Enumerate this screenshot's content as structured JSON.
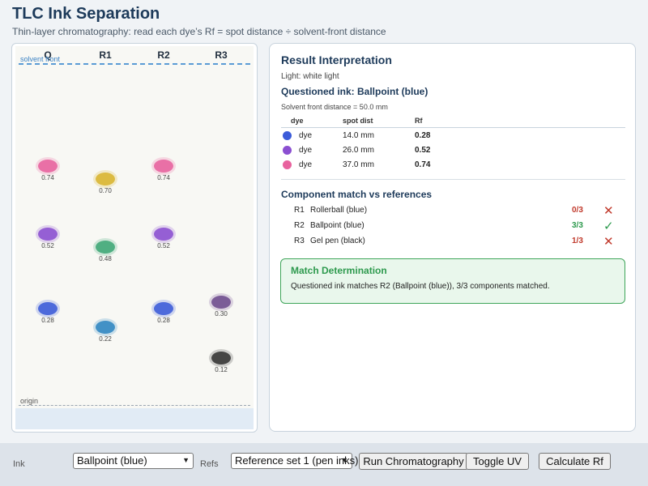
{
  "header": {
    "title": "TLC Ink Separation",
    "subtitle": "Thin-layer chromatography: read each dye’s Rf = spot distance ÷ solvent-front distance"
  },
  "plate": {
    "lanes": [
      "Q",
      "R1",
      "R2",
      "R3"
    ],
    "solvent_front_label": "solvent front",
    "origin_label": "origin",
    "spots": [
      {
        "lane": "Q",
        "rf": 0.74,
        "label": "0.74",
        "color": "#e8629e"
      },
      {
        "lane": "Q",
        "rf": 0.52,
        "label": "0.52",
        "color": "#8b4fd1"
      },
      {
        "lane": "Q",
        "rf": 0.28,
        "label": "0.28",
        "color": "#3b5bd9"
      },
      {
        "lane": "R1",
        "rf": 0.7,
        "label": "0.70",
        "color": "#d9b52f"
      },
      {
        "lane": "R1",
        "rf": 0.48,
        "label": "0.48",
        "color": "#3ea876"
      },
      {
        "lane": "R1",
        "rf": 0.22,
        "label": "0.22",
        "color": "#2f86c2"
      },
      {
        "lane": "R2",
        "rf": 0.74,
        "label": "0.74",
        "color": "#e8629e"
      },
      {
        "lane": "R2",
        "rf": 0.52,
        "label": "0.52",
        "color": "#8b4fd1"
      },
      {
        "lane": "R2",
        "rf": 0.28,
        "label": "0.28",
        "color": "#3b5bd9"
      },
      {
        "lane": "R3",
        "rf": 0.3,
        "label": "0.30",
        "color": "#6e4c8e"
      },
      {
        "lane": "R3",
        "rf": 0.12,
        "label": "0.12",
        "color": "#333333"
      }
    ]
  },
  "result": {
    "title": "Result Interpretation",
    "light": "Light: white light",
    "questioned": "Questioned ink: Ballpoint (blue)",
    "front_distance": "Solvent front distance = 50.0 mm",
    "dye_headers": {
      "dye": "dye",
      "dist": "spot dist",
      "rf": "Rf"
    },
    "dyes": [
      {
        "color": "#3b5bd9",
        "name": "dye",
        "dist": "14.0 mm",
        "rf": "0.28"
      },
      {
        "color": "#8b4fd1",
        "name": "dye",
        "dist": "26.0 mm",
        "rf": "0.52"
      },
      {
        "color": "#e8629e",
        "name": "dye",
        "dist": "37.0 mm",
        "rf": "0.74"
      }
    ],
    "component_title": "Component match vs references",
    "components": [
      {
        "id": "R1",
        "name": "Rollerball (blue)",
        "score": "0/3",
        "match": false,
        "icon": "cross-icon",
        "score_color": "#c0392b"
      },
      {
        "id": "R2",
        "name": "Ballpoint (blue)",
        "score": "3/3",
        "match": true,
        "icon": "check-icon",
        "score_color": "#2e9a4e"
      },
      {
        "id": "R3",
        "name": "Gel pen (black)",
        "score": "1/3",
        "match": false,
        "icon": "cross-icon",
        "score_color": "#c0392b"
      }
    ],
    "determination_title": "Match Determination",
    "determination_text": "Questioned ink matches R2 (Ballpoint (blue)), 3/3 components matched."
  },
  "controls": {
    "ink_label": "Ink",
    "ink_value": "Ballpoint (blue)",
    "refs_label": "Refs",
    "refs_value": "Reference set 1 (pen inks)",
    "run_label": "Run Chromatography",
    "uv_label": "Toggle UV",
    "calc_label": "Calculate Rf"
  },
  "colors": {
    "accent": "#1d3a5a",
    "match_green": "#2e9a4e",
    "mismatch_red": "#c0392b"
  }
}
